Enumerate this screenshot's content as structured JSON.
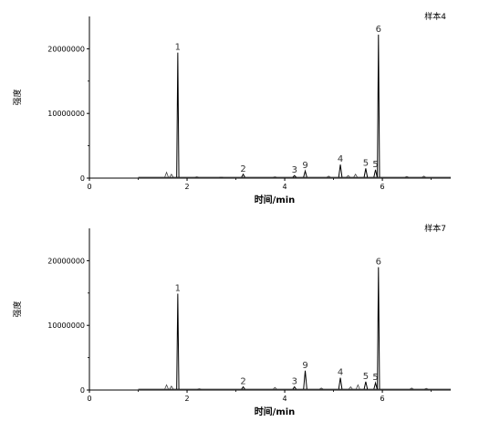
{
  "chart_data": [
    {
      "type": "line",
      "sample_label": "样本4",
      "xlabel": "时间/min",
      "ylabel": "强度",
      "xlim": [
        0,
        7.4
      ],
      "ylim": [
        0,
        25000000
      ],
      "x_ticks": [
        "0",
        "2",
        "4",
        "6"
      ],
      "y_ticks": [
        "0",
        "10000000",
        "20000000"
      ],
      "grid": false,
      "peaks": [
        {
          "label": "1",
          "x": 1.81,
          "y": 19400000
        },
        {
          "label": "2",
          "x": 3.15,
          "y": 600000
        },
        {
          "label": "3",
          "x": 4.2,
          "y": 400000
        },
        {
          "label": "9",
          "x": 4.42,
          "y": 1100000
        },
        {
          "label": "4",
          "x": 5.14,
          "y": 2100000
        },
        {
          "label": "5",
          "x": 5.66,
          "y": 1500000
        },
        {
          "label": "5",
          "x": 5.86,
          "y": 1300000
        },
        {
          "label": "6",
          "x": 5.92,
          "y": 22200000
        }
      ],
      "minor_peaks": [
        {
          "x": 1.58,
          "y": 900000
        },
        {
          "x": 1.68,
          "y": 600000
        },
        {
          "x": 2.2,
          "y": 200000
        },
        {
          "x": 2.7,
          "y": 150000
        },
        {
          "x": 3.8,
          "y": 200000
        },
        {
          "x": 4.9,
          "y": 300000
        },
        {
          "x": 5.3,
          "y": 400000
        },
        {
          "x": 5.45,
          "y": 600000
        },
        {
          "x": 6.5,
          "y": 250000
        },
        {
          "x": 6.85,
          "y": 300000
        }
      ]
    },
    {
      "type": "line",
      "sample_label": "样本7",
      "xlabel": "时间/min",
      "ylabel": "强度",
      "xlim": [
        0,
        7.4
      ],
      "ylim": [
        0,
        25000000
      ],
      "x_ticks": [
        "0",
        "2",
        "4",
        "6"
      ],
      "y_ticks": [
        "0",
        "10000000",
        "20000000"
      ],
      "grid": false,
      "peaks": [
        {
          "label": "1",
          "x": 1.81,
          "y": 14900000
        },
        {
          "label": "2",
          "x": 3.15,
          "y": 500000
        },
        {
          "label": "3",
          "x": 4.2,
          "y": 500000
        },
        {
          "label": "9",
          "x": 4.42,
          "y": 3000000
        },
        {
          "label": "4",
          "x": 5.14,
          "y": 1900000
        },
        {
          "label": "5",
          "x": 5.66,
          "y": 1300000
        },
        {
          "label": "5",
          "x": 5.86,
          "y": 1100000
        },
        {
          "label": "6",
          "x": 5.92,
          "y": 19000000
        }
      ],
      "minor_peaks": [
        {
          "x": 1.58,
          "y": 800000
        },
        {
          "x": 1.68,
          "y": 600000
        },
        {
          "x": 2.25,
          "y": 200000
        },
        {
          "x": 3.8,
          "y": 400000
        },
        {
          "x": 4.75,
          "y": 300000
        },
        {
          "x": 5.35,
          "y": 500000
        },
        {
          "x": 5.5,
          "y": 800000
        },
        {
          "x": 6.6,
          "y": 300000
        },
        {
          "x": 6.9,
          "y": 250000
        }
      ]
    }
  ]
}
